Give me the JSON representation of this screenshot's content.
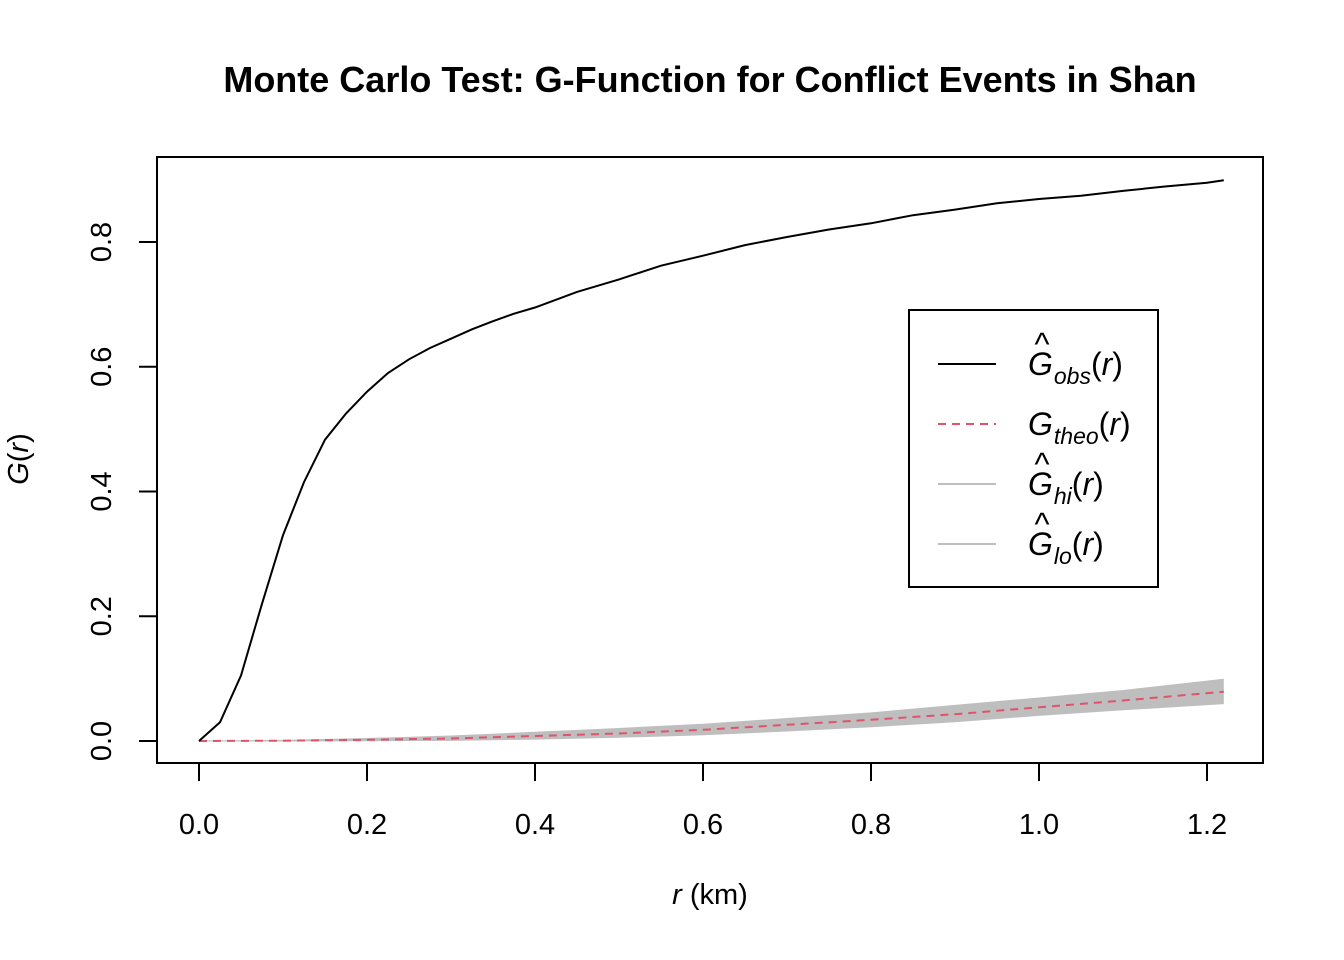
{
  "chart_data": {
    "type": "line",
    "title": "Monte Carlo Test: G-Function for Conflict Events in Shan",
    "xlabel": {
      "var": "r",
      "unit": "(km)"
    },
    "ylabel": {
      "func": "G",
      "open": "(",
      "var": "r",
      "close": ")"
    },
    "xlim": [
      0,
      1.22
    ],
    "ylim": [
      0,
      0.9
    ],
    "x_ticks": [
      "0.0",
      "0.2",
      "0.4",
      "0.6",
      "0.8",
      "1.0",
      "1.2"
    ],
    "y_ticks": [
      "0.0",
      "0.2",
      "0.4",
      "0.6",
      "0.8"
    ],
    "grid": false,
    "legend_position": "right",
    "legend": [
      {
        "hat": "^",
        "base": "G",
        "sub": "obs",
        "open": "(",
        "var": "r",
        "close": ")",
        "style": "solid",
        "color": "#000000"
      },
      {
        "hat": "",
        "base": "G",
        "sub": "theo",
        "open": "(",
        "var": "r",
        "close": ")",
        "style": "dashed",
        "color": "#DF536B"
      },
      {
        "hat": "^",
        "base": "G",
        "sub": "hi",
        "open": "(",
        "var": "r",
        "close": ")",
        "style": "solid",
        "color": "#BEBEBE"
      },
      {
        "hat": "^",
        "base": "G",
        "sub": "lo",
        "open": "(",
        "var": "r",
        "close": ")",
        "style": "solid",
        "color": "#BEBEBE"
      }
    ],
    "envelope_color": "#BEBEBE",
    "series": [
      {
        "key": "obs",
        "color": "#000000",
        "x": [
          0,
          0.025,
          0.05,
          0.075,
          0.1,
          0.125,
          0.15,
          0.175,
          0.2,
          0.225,
          0.25,
          0.275,
          0.3,
          0.325,
          0.35,
          0.375,
          0.4,
          0.45,
          0.5,
          0.55,
          0.6,
          0.65,
          0.7,
          0.75,
          0.8,
          0.85,
          0.9,
          0.95,
          1.0,
          1.05,
          1.1,
          1.15,
          1.2,
          1.22
        ],
        "y": [
          0,
          0.03,
          0.105,
          0.22,
          0.33,
          0.415,
          0.483,
          0.525,
          0.56,
          0.59,
          0.612,
          0.63,
          0.645,
          0.66,
          0.673,
          0.685,
          0.695,
          0.72,
          0.74,
          0.762,
          0.778,
          0.795,
          0.808,
          0.82,
          0.83,
          0.843,
          0.852,
          0.862,
          0.869,
          0.874,
          0.882,
          0.889,
          0.895,
          0.899
        ]
      },
      {
        "key": "theo",
        "color": "#DF536B",
        "x": [
          0,
          0.1,
          0.2,
          0.3,
          0.4,
          0.5,
          0.6,
          0.7,
          0.8,
          0.9,
          1.0,
          1.1,
          1.22
        ],
        "y": [
          0,
          0.0005,
          0.002,
          0.004,
          0.008,
          0.012,
          0.018,
          0.026,
          0.034,
          0.043,
          0.054,
          0.065,
          0.079
        ]
      },
      {
        "key": "hi",
        "color": "#BEBEBE",
        "x": [
          0,
          0.1,
          0.2,
          0.3,
          0.4,
          0.5,
          0.6,
          0.7,
          0.8,
          0.9,
          1.0,
          1.1,
          1.22
        ],
        "y": [
          0,
          0.001,
          0.004,
          0.008,
          0.014,
          0.02,
          0.027,
          0.036,
          0.045,
          0.057,
          0.069,
          0.081,
          0.099
        ]
      },
      {
        "key": "lo",
        "color": "#BEBEBE",
        "x": [
          0,
          0.1,
          0.2,
          0.3,
          0.4,
          0.5,
          0.6,
          0.7,
          0.8,
          0.9,
          1.0,
          1.1,
          1.22
        ],
        "y": [
          0,
          0,
          0.0005,
          0.001,
          0.003,
          0.006,
          0.01,
          0.016,
          0.023,
          0.031,
          0.041,
          0.05,
          0.06
        ]
      }
    ]
  }
}
